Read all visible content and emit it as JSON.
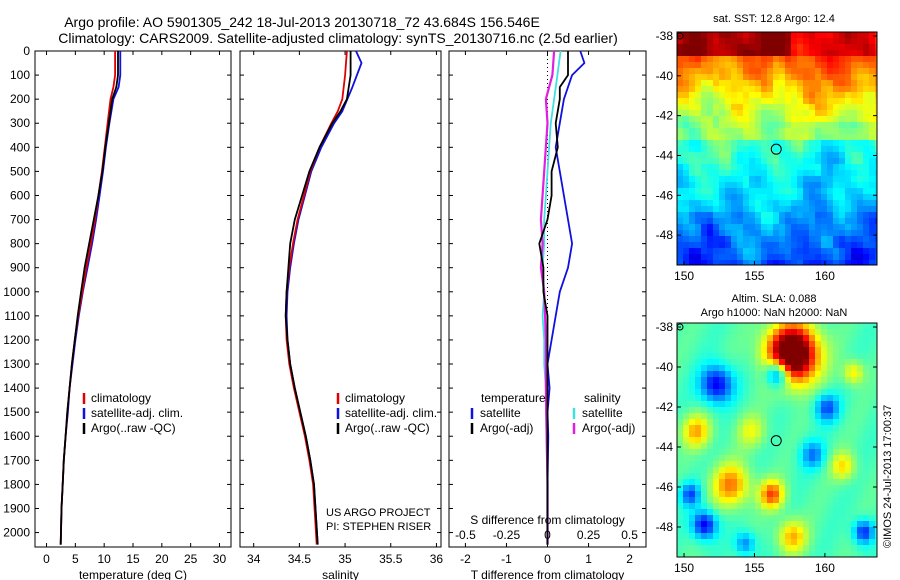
{
  "title_line1": "Argo profile: AO 5901305_242 18-Jul-2013 20130718_72 43.684S 156.546E",
  "title_line2": "Climatology: CARS2009. Satellite-adjusted climatology: synTS_20130716.nc (2.5d earlier)",
  "project_line1": "US ARGO PROJECT",
  "project_line2": "PI: STEPHEN RISER",
  "sst_title": "sat. SST: 12.8 Argo: 12.4",
  "sla_title1": "Altim. SLA: 0.088",
  "sla_title2": "Argo h1000: NaN h2000: NaN",
  "stamp": "©IMOS 24-Jul-2013 17:00:37",
  "colors": {
    "climatology": "#e00000",
    "satellite": "#1010e0",
    "argo": "#000000",
    "sal_satellite": "#40e0e0",
    "sal_argo": "#e020e0"
  },
  "chart_data": [
    {
      "type": "line",
      "name": "temperature-profile",
      "xlabel": "temperature (deg C)",
      "ylabel": "",
      "xlim": [
        -2,
        32
      ],
      "ylim": [
        2060,
        0
      ],
      "xticks": [
        0,
        5,
        10,
        15,
        20,
        25,
        30
      ],
      "yticks": [
        0,
        100,
        200,
        300,
        400,
        500,
        600,
        700,
        800,
        900,
        1000,
        1100,
        1200,
        1300,
        1400,
        1500,
        1600,
        1700,
        1800,
        1900,
        2000
      ],
      "legend": [
        "climatology",
        "satellite-adj. clim.",
        "Argo(..raw -QC)"
      ],
      "legend_position": "lower-center",
      "series": [
        {
          "name": "climatology",
          "x": [
            11.9,
            11.9,
            11.6,
            11.1,
            10.6,
            10.1,
            9.6,
            9.0,
            8.4,
            7.7,
            6.9,
            6.2,
            5.5,
            4.9,
            4.4,
            4.0,
            3.6,
            3.3,
            3.0,
            2.8,
            2.6,
            2.45
          ],
          "y": [
            0,
            100,
            150,
            200,
            300,
            400,
            500,
            600,
            700,
            800,
            900,
            1000,
            1100,
            1200,
            1300,
            1400,
            1500,
            1600,
            1700,
            1800,
            1900,
            2050
          ]
        },
        {
          "name": "satellite-adj. clim.",
          "x": [
            12.8,
            12.8,
            12.5,
            11.6,
            10.9,
            10.3,
            9.8,
            9.2,
            8.6,
            7.9,
            7.1,
            6.3,
            5.6,
            5.0,
            4.5,
            4.0,
            3.7,
            3.3,
            3.0,
            2.8,
            2.6,
            2.45
          ],
          "y": [
            0,
            100,
            150,
            200,
            300,
            400,
            500,
            600,
            700,
            800,
            900,
            1000,
            1100,
            1200,
            1300,
            1400,
            1500,
            1600,
            1700,
            1800,
            1900,
            2050
          ]
        },
        {
          "name": "Argo(..raw -QC)",
          "x": [
            12.4,
            12.4,
            12.1,
            11.4,
            10.8,
            10.2,
            9.7,
            9.0,
            8.2,
            7.4,
            6.6,
            6.0,
            5.4,
            4.9,
            4.4,
            4.0,
            3.6,
            3.3,
            3.0,
            2.8,
            2.6,
            2.45
          ],
          "y": [
            0,
            100,
            150,
            200,
            300,
            400,
            500,
            600,
            700,
            800,
            900,
            1000,
            1100,
            1200,
            1300,
            1400,
            1500,
            1600,
            1700,
            1800,
            1900,
            2050
          ]
        }
      ]
    },
    {
      "type": "line",
      "name": "salinity-profile",
      "xlabel": "salinity",
      "xlim": [
        33.85,
        36.05
      ],
      "ylim": [
        2060,
        0
      ],
      "xticks": [
        34,
        34.5,
        35,
        35.5,
        36
      ],
      "legend": [
        "climatology",
        "satellite-adj. clim.",
        "Argo(..raw -QC)"
      ],
      "legend_position": "lower-center",
      "series": [
        {
          "name": "climatology",
          "x": [
            35.02,
            35.0,
            34.97,
            34.92,
            34.85,
            34.72,
            34.62,
            34.55,
            34.48,
            34.43,
            34.39,
            34.36,
            34.35,
            34.36,
            34.39,
            34.44,
            34.5,
            34.56,
            34.61,
            34.65,
            34.69
          ],
          "y": [
            0,
            100,
            200,
            250,
            300,
            400,
            500,
            600,
            700,
            800,
            900,
            1000,
            1100,
            1200,
            1300,
            1400,
            1500,
            1600,
            1700,
            1800,
            2050
          ]
        },
        {
          "name": "satellite-adj. clim.",
          "x": [
            35.12,
            35.18,
            35.08,
            34.97,
            34.88,
            34.74,
            34.63,
            34.56,
            34.49,
            34.44,
            34.4,
            34.37,
            34.36,
            34.37,
            34.4,
            34.45,
            34.51,
            34.57,
            34.62,
            34.66,
            34.7
          ],
          "y": [
            0,
            50,
            150,
            250,
            300,
            400,
            500,
            600,
            700,
            800,
            900,
            1000,
            1100,
            1200,
            1300,
            1400,
            1500,
            1600,
            1700,
            1800,
            2050
          ]
        },
        {
          "name": "Argo(..raw -QC)",
          "x": [
            35.06,
            35.06,
            35.02,
            34.95,
            34.86,
            34.72,
            34.61,
            34.53,
            34.45,
            34.4,
            34.38,
            34.36,
            34.35,
            34.37,
            34.4,
            34.45,
            34.51,
            34.57,
            34.62,
            34.66,
            34.7
          ],
          "y": [
            0,
            100,
            200,
            250,
            300,
            400,
            500,
            600,
            700,
            800,
            900,
            1000,
            1100,
            1200,
            1300,
            1400,
            1500,
            1600,
            1700,
            1800,
            2050
          ]
        }
      ]
    },
    {
      "type": "line",
      "name": "difference-profile",
      "xlabel": "T difference from climatology",
      "xlabel_top": "S difference from climatology",
      "xlim": [
        -2.4,
        2.4
      ],
      "ylim": [
        2060,
        0
      ],
      "xticks": [
        -2,
        -1,
        0,
        1,
        2
      ],
      "xticks_top": [
        -0.5,
        -0.25,
        0,
        0.25,
        0.5
      ],
      "legend_temperature_header": "temperature",
      "legend_salinity_header": "salinity",
      "legend": [
        "satellite",
        "Argo(-adj)",
        "satellite",
        "Argo(-adj)"
      ],
      "legend_position": "lower-center",
      "series": [
        {
          "name": "temperature satellite",
          "x": [
            0.8,
            0.9,
            0.6,
            0.5,
            0.4,
            0.3,
            0.2,
            0.3,
            0.4,
            0.5,
            0.6,
            0.5,
            0.3,
            0.2,
            0.1,
            0.0,
            0.05,
            0.0,
            0.02,
            0.0,
            0.0
          ],
          "y": [
            0,
            50,
            100,
            150,
            200,
            300,
            400,
            500,
            600,
            700,
            800,
            900,
            1000,
            1100,
            1200,
            1300,
            1400,
            1500,
            1600,
            1800,
            2050
          ]
        },
        {
          "name": "temperature Argo(-adj)",
          "x": [
            0.5,
            0.5,
            0.3,
            0.3,
            0.2,
            0.25,
            0.1,
            0.1,
            0.0,
            -0.2,
            -0.1,
            -0.1,
            0.0,
            0.0,
            0.0,
            0.0,
            0.0,
            0.0,
            0.0,
            0.0
          ],
          "y": [
            0,
            100,
            150,
            200,
            300,
            400,
            500,
            600,
            700,
            800,
            900,
            1000,
            1100,
            1200,
            1300,
            1400,
            1500,
            1600,
            1800,
            2050
          ]
        },
        {
          "name": "salinity satellite",
          "x": [
            0.08,
            0.06,
            0.04,
            0.02,
            0.01,
            0.0,
            -0.01,
            -0.02,
            -0.02,
            -0.03,
            -0.02,
            -0.03,
            -0.02,
            -0.02,
            -0.01,
            -0.01,
            0.0,
            0.0
          ],
          "y": [
            0,
            100,
            200,
            300,
            400,
            500,
            600,
            700,
            800,
            900,
            1000,
            1100,
            1200,
            1300,
            1400,
            1500,
            1800,
            2050
          ]
        },
        {
          "name": "salinity Argo(-adj)",
          "x": [
            0.04,
            0.03,
            0.01,
            -0.01,
            0.0,
            -0.02,
            -0.04,
            -0.03,
            -0.04,
            -0.02,
            -0.01,
            -0.01,
            0.0,
            0.0
          ],
          "y": [
            0,
            100,
            150,
            200,
            300,
            500,
            700,
            800,
            900,
            1000,
            1200,
            1400,
            1800,
            2050
          ]
        }
      ]
    },
    {
      "type": "heatmap",
      "name": "sst-map",
      "xlim": [
        149.5,
        163.7
      ],
      "ylim": [
        -49.5,
        -37.8
      ],
      "xticks": [
        150,
        155,
        160
      ],
      "yticks": [
        -38,
        -40,
        -42,
        -44,
        -46,
        -48
      ],
      "argo_position": [
        156.546,
        -43.684
      ]
    },
    {
      "type": "heatmap",
      "name": "sla-map",
      "xlim": [
        149.5,
        163.7
      ],
      "ylim": [
        -49.5,
        -37.8
      ],
      "xticks": [
        150,
        155,
        160
      ],
      "yticks": [
        -38,
        -40,
        -42,
        -44,
        -46,
        -48
      ],
      "argo_position": [
        156.546,
        -43.684
      ]
    }
  ]
}
